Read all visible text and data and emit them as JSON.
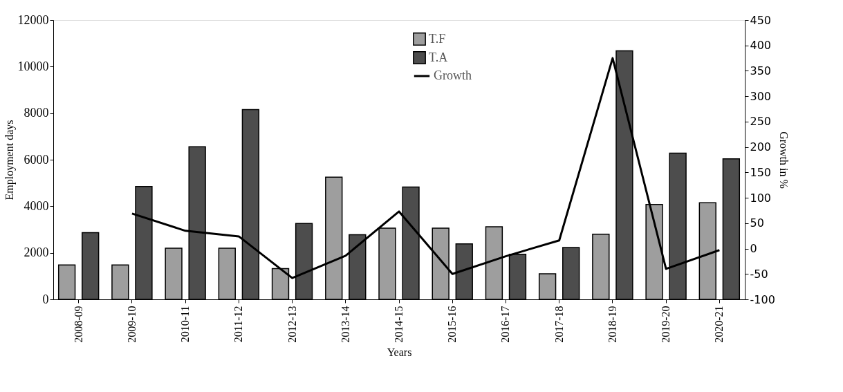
{
  "chart_data": {
    "type": "bar",
    "xlabel": "Years",
    "ylabel": "Employment days",
    "y2label": "Growth in %",
    "categories": [
      "2008-09",
      "2009-10",
      "2010-11",
      "2011-12",
      "2012-13",
      "2013-14",
      "2014-15",
      "2015-16",
      "2016-17",
      "2017-18",
      "2018-19",
      "2019-20",
      "2020-21"
    ],
    "series": [
      {
        "name": "T.F",
        "color": "#9e9e9e",
        "values": [
          1480,
          1480,
          2200,
          2200,
          1320,
          5250,
          3060,
          3060,
          3120,
          1100,
          2800,
          4080,
          4150
        ]
      },
      {
        "name": "T.A",
        "color": "#4d4d4d",
        "values": [
          2870,
          4850,
          6560,
          8150,
          3260,
          2780,
          4830,
          2380,
          1940,
          2230,
          10680,
          6280,
          6040
        ]
      },
      {
        "name": "Growth",
        "type": "line",
        "axis": "y2",
        "color": "#000000",
        "values": [
          null,
          69,
          35,
          24,
          -58,
          -14,
          73,
          -50,
          -15,
          16,
          375,
          -40,
          -3
        ]
      }
    ],
    "ylim": [
      0,
      12000
    ],
    "yticks": [
      0,
      2000,
      4000,
      6000,
      8000,
      10000,
      12000
    ],
    "y2lim": [
      -100,
      450
    ],
    "y2ticks": [
      -100,
      -50,
      0,
      50,
      100,
      150,
      200,
      250,
      300,
      350,
      400,
      450
    ],
    "grid": false,
    "legend": "top",
    "marker": "none",
    "line_style": "solid"
  }
}
